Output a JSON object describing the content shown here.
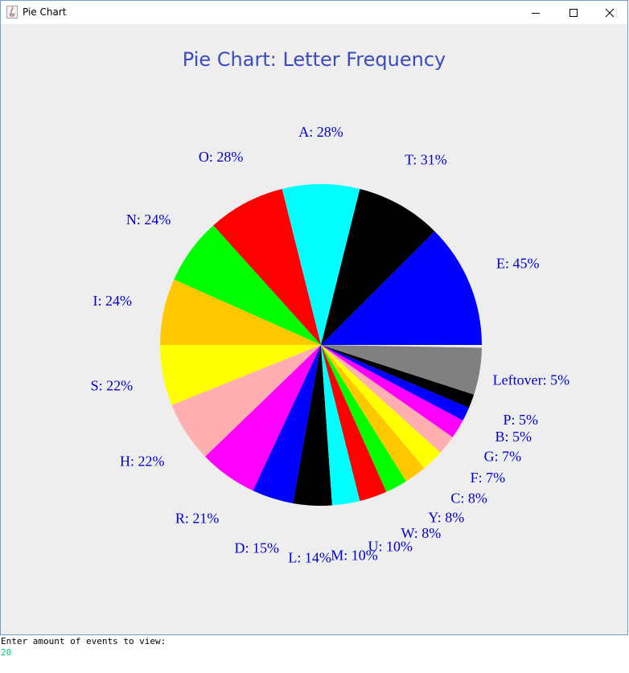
{
  "window": {
    "title": "Pie Chart"
  },
  "console": {
    "prompt": "Enter amount of events to view:",
    "input": "20"
  },
  "chart_data": {
    "type": "pie",
    "title": "Pie Chart: Letter Frequency",
    "slices": [
      {
        "label": "E: 45%",
        "color": "#0000ff",
        "angle": 45
      },
      {
        "label": "T: 31%",
        "color": "#000000",
        "angle": 31
      },
      {
        "label": "A: 28%",
        "color": "#00ffff",
        "angle": 28
      },
      {
        "label": "O: 28%",
        "color": "#ff0000",
        "angle": 28
      },
      {
        "label": "N: 24%",
        "color": "#00ff00",
        "angle": 24
      },
      {
        "label": "I: 24%",
        "color": "#ffc800",
        "angle": 24
      },
      {
        "label": "S: 22%",
        "color": "#ffff00",
        "angle": 22
      },
      {
        "label": "H: 22%",
        "color": "#ffafaf",
        "angle": 22
      },
      {
        "label": "R: 21%",
        "color": "#ff00ff",
        "angle": 21
      },
      {
        "label": "D: 15%",
        "color": "#0000ff",
        "angle": 15
      },
      {
        "label": "L: 14%",
        "color": "#000000",
        "angle": 14
      },
      {
        "label": "M: 10%",
        "color": "#00ffff",
        "angle": 10
      },
      {
        "label": "U: 10%",
        "color": "#ff0000",
        "angle": 10
      },
      {
        "label": "W: 8%",
        "color": "#00ff00",
        "angle": 8
      },
      {
        "label": "Y: 8%",
        "color": "#ffc800",
        "angle": 8
      },
      {
        "label": "C: 8%",
        "color": "#ffff00",
        "angle": 8
      },
      {
        "label": "F: 7%",
        "color": "#ffafaf",
        "angle": 7
      },
      {
        "label": "G: 7%",
        "color": "#ff00ff",
        "angle": 7
      },
      {
        "label": "B: 5%",
        "color": "#0000ff",
        "angle": 5
      },
      {
        "label": "P: 5%",
        "color": "#000000",
        "angle": 5
      },
      {
        "label": "Leftover: 5%",
        "color": "#808080",
        "angle": 17
      }
    ]
  }
}
